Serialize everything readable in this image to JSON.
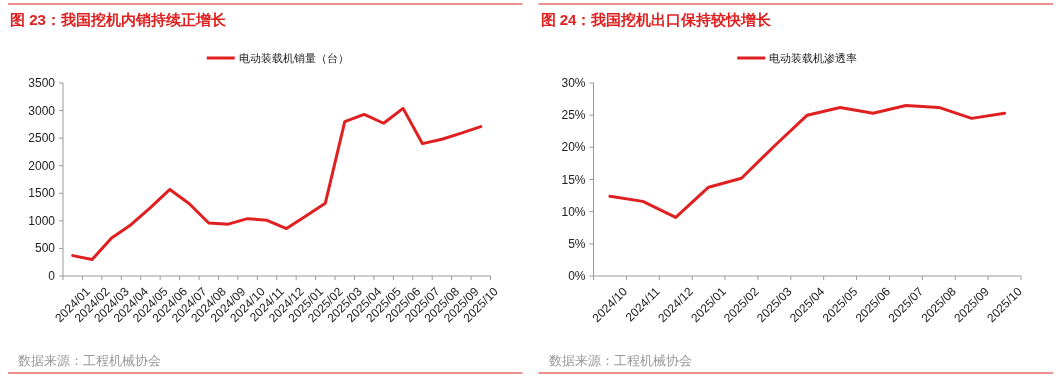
{
  "chart_data": [
    {
      "type": "line",
      "title": "图 23：我国挖机内销持续正增长",
      "categories": [
        "2024/01",
        "2024/02",
        "2024/03",
        "2024/04",
        "2024/05",
        "2024/06",
        "2024/07",
        "2024/08",
        "2024/09",
        "2024/10",
        "2024/11",
        "2024/12",
        "2025/01",
        "2025/02",
        "2025/03",
        "2025/04",
        "2025/05",
        "2025/06",
        "2025/07",
        "2025/08",
        "2025/09",
        "2025/10"
      ],
      "series": [
        {
          "name": "电动装载机销量（台）",
          "color": "#e02020",
          "values": [
            370,
            300,
            690,
            930,
            1240,
            1570,
            1310,
            960,
            940,
            1040,
            1010,
            860,
            1090,
            1320,
            2800,
            2930,
            2770,
            3040,
            2400,
            2480,
            2590,
            2710
          ]
        }
      ],
      "ylim": [
        0,
        3500
      ],
      "yticks": [
        0,
        500,
        1000,
        1500,
        2000,
        2500,
        3000,
        3500
      ],
      "grid": false,
      "legend": "top",
      "marker": "none",
      "line_style": "solid",
      "annotations": [
        "数据来源：工程机械协会"
      ]
    },
    {
      "type": "line",
      "title": "图 24：我国挖机出口保持较快增长",
      "categories": [
        "2024/10",
        "2024/11",
        "2024/12",
        "2025/01",
        "2025/02",
        "2025/03",
        "2025/04",
        "2025/05",
        "2025/06",
        "2025/07",
        "2025/08",
        "2025/09",
        "2025/10"
      ],
      "series": [
        {
          "name": "电动装载机渗透率",
          "color": "#e02020",
          "values": [
            12.4,
            11.6,
            9.1,
            13.8,
            15.2,
            20.2,
            25.0,
            26.2,
            25.3,
            26.5,
            26.2,
            24.5,
            25.3
          ]
        }
      ],
      "ylim": [
        0,
        30
      ],
      "yticks": [
        {
          "value": 0,
          "label": "0%"
        },
        {
          "value": 5,
          "label": "5%"
        },
        {
          "value": 10,
          "label": "10%"
        },
        {
          "value": 15,
          "label": "15%"
        },
        {
          "value": 20,
          "label": "20%"
        },
        {
          "value": 25,
          "label": "25%"
        },
        {
          "value": 30,
          "label": "30%"
        }
      ],
      "grid": false,
      "legend": "top",
      "marker": "none",
      "line_style": "solid",
      "annotations": [
        "数据来源：工程机械协会"
      ]
    }
  ]
}
